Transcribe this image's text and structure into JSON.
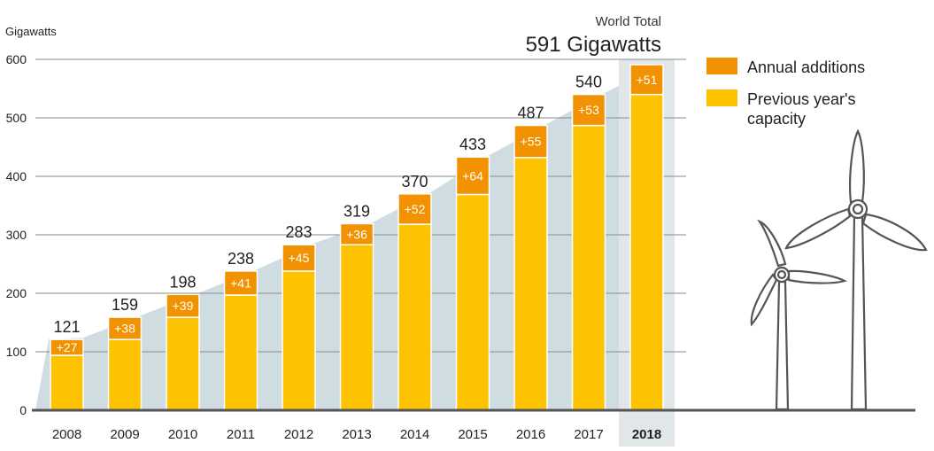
{
  "chart_data": {
    "type": "bar",
    "stacked": true,
    "ylabel": "Gigawatts",
    "ylim": [
      0,
      600
    ],
    "yticks": [
      0,
      100,
      200,
      300,
      400,
      500,
      600
    ],
    "grid": true,
    "categories": [
      "2008",
      "2009",
      "2010",
      "2011",
      "2012",
      "2013",
      "2014",
      "2015",
      "2016",
      "2017",
      "2018"
    ],
    "highlight_category": "2018",
    "series": [
      {
        "name": "Previous year's capacity",
        "color": "#FDC300",
        "values": [
          94,
          121,
          159,
          197,
          238,
          283,
          318,
          369,
          432,
          487,
          540
        ]
      },
      {
        "name": "Annual additions",
        "color": "#F39200",
        "values": [
          27,
          38,
          39,
          41,
          45,
          36,
          52,
          64,
          55,
          53,
          51
        ]
      }
    ],
    "addition_labels": [
      "+27",
      "+38",
      "+39",
      "+41",
      "+45",
      "+36",
      "+52",
      "+64",
      "+55",
      "+53",
      "+51"
    ],
    "total_labels": [
      "121",
      "159",
      "198",
      "238",
      "283",
      "319",
      "370",
      "433",
      "487",
      "540",
      ""
    ],
    "legend": {
      "placement": "top-right",
      "items": [
        {
          "label": "Annual additions",
          "color": "#F39200"
        },
        {
          "label_lines": [
            "Previous year's",
            "capacity"
          ],
          "color": "#FDC300"
        }
      ]
    },
    "world_total": {
      "caption": "World Total",
      "value": "591 Gigawatts"
    }
  }
}
